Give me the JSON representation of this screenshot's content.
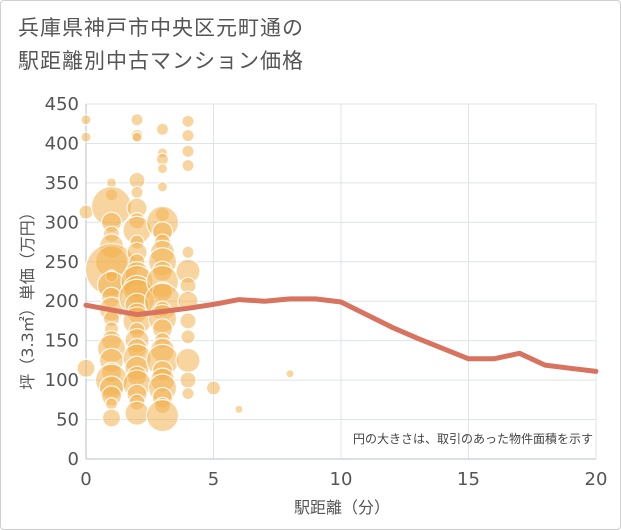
{
  "chart_data": {
    "type": "scatter",
    "title_lines": [
      "兵庫県神戸市中央区元町通の",
      "駅距離別中古マンション価格"
    ],
    "xlabel": "駅距離（分）",
    "ylabel": "坪（3.3㎡）単価（万円）",
    "note": "円の大きさは、取引のあった物件面積を示す",
    "xlim": [
      0,
      20
    ],
    "ylim": [
      0,
      450
    ],
    "x_ticks": [
      0,
      5,
      10,
      15,
      20
    ],
    "y_ticks": [
      0,
      50,
      100,
      150,
      200,
      250,
      300,
      350,
      400,
      450
    ],
    "grid": true,
    "colors": {
      "bubble": "#f2b04e",
      "trend": "#d87360",
      "grid": "#dde4ea",
      "text": "#555555"
    },
    "points": [
      {
        "x": 0,
        "y": 430,
        "r": 5
      },
      {
        "x": 0,
        "y": 408,
        "r": 5
      },
      {
        "x": 0,
        "y": 313,
        "r": 7
      },
      {
        "x": 0,
        "y": 115,
        "r": 9
      },
      {
        "x": 1,
        "y": 350,
        "r": 5
      },
      {
        "x": 1,
        "y": 335,
        "r": 6
      },
      {
        "x": 1,
        "y": 320,
        "r": 20
      },
      {
        "x": 1,
        "y": 300,
        "r": 10
      },
      {
        "x": 1,
        "y": 285,
        "r": 8
      },
      {
        "x": 1,
        "y": 270,
        "r": 12
      },
      {
        "x": 1,
        "y": 250,
        "r": 16
      },
      {
        "x": 1,
        "y": 240,
        "r": 26
      },
      {
        "x": 1,
        "y": 232,
        "r": 6
      },
      {
        "x": 1,
        "y": 220,
        "r": 14
      },
      {
        "x": 1,
        "y": 205,
        "r": 10
      },
      {
        "x": 1,
        "y": 190,
        "r": 12
      },
      {
        "x": 1,
        "y": 178,
        "r": 8
      },
      {
        "x": 1,
        "y": 165,
        "r": 7
      },
      {
        "x": 1,
        "y": 150,
        "r": 10
      },
      {
        "x": 1,
        "y": 140,
        "r": 14
      },
      {
        "x": 1,
        "y": 125,
        "r": 12
      },
      {
        "x": 1,
        "y": 110,
        "r": 10
      },
      {
        "x": 1,
        "y": 100,
        "r": 16
      },
      {
        "x": 1,
        "y": 90,
        "r": 12
      },
      {
        "x": 1,
        "y": 80,
        "r": 10
      },
      {
        "x": 1,
        "y": 70,
        "r": 6
      },
      {
        "x": 1,
        "y": 52,
        "r": 9
      },
      {
        "x": 2,
        "y": 430,
        "r": 6
      },
      {
        "x": 2,
        "y": 410,
        "r": 6
      },
      {
        "x": 2,
        "y": 408,
        "r": 5
      },
      {
        "x": 2,
        "y": 353,
        "r": 8
      },
      {
        "x": 2,
        "y": 338,
        "r": 6
      },
      {
        "x": 2,
        "y": 318,
        "r": 10
      },
      {
        "x": 2,
        "y": 302,
        "r": 8
      },
      {
        "x": 2,
        "y": 290,
        "r": 14
      },
      {
        "x": 2,
        "y": 275,
        "r": 7
      },
      {
        "x": 2,
        "y": 262,
        "r": 10
      },
      {
        "x": 2,
        "y": 250,
        "r": 8
      },
      {
        "x": 2,
        "y": 235,
        "r": 12
      },
      {
        "x": 2,
        "y": 225,
        "r": 16
      },
      {
        "x": 2,
        "y": 215,
        "r": 14
      },
      {
        "x": 2,
        "y": 205,
        "r": 18
      },
      {
        "x": 2,
        "y": 195,
        "r": 12
      },
      {
        "x": 2,
        "y": 185,
        "r": 10
      },
      {
        "x": 2,
        "y": 175,
        "r": 14
      },
      {
        "x": 2,
        "y": 163,
        "r": 8
      },
      {
        "x": 2,
        "y": 150,
        "r": 12
      },
      {
        "x": 2,
        "y": 140,
        "r": 10
      },
      {
        "x": 2,
        "y": 128,
        "r": 14
      },
      {
        "x": 2,
        "y": 115,
        "r": 12
      },
      {
        "x": 2,
        "y": 105,
        "r": 10
      },
      {
        "x": 2,
        "y": 95,
        "r": 14
      },
      {
        "x": 2,
        "y": 82,
        "r": 10
      },
      {
        "x": 2,
        "y": 72,
        "r": 8
      },
      {
        "x": 2,
        "y": 58,
        "r": 12
      },
      {
        "x": 3,
        "y": 418,
        "r": 6
      },
      {
        "x": 3,
        "y": 388,
        "r": 5
      },
      {
        "x": 3,
        "y": 380,
        "r": 6
      },
      {
        "x": 3,
        "y": 368,
        "r": 5
      },
      {
        "x": 3,
        "y": 345,
        "r": 5
      },
      {
        "x": 3,
        "y": 310,
        "r": 7
      },
      {
        "x": 3,
        "y": 300,
        "r": 16
      },
      {
        "x": 3,
        "y": 288,
        "r": 10
      },
      {
        "x": 3,
        "y": 275,
        "r": 8
      },
      {
        "x": 3,
        "y": 262,
        "r": 12
      },
      {
        "x": 3,
        "y": 250,
        "r": 14
      },
      {
        "x": 3,
        "y": 238,
        "r": 10
      },
      {
        "x": 3,
        "y": 225,
        "r": 16
      },
      {
        "x": 3,
        "y": 212,
        "r": 10
      },
      {
        "x": 3,
        "y": 200,
        "r": 18
      },
      {
        "x": 3,
        "y": 190,
        "r": 8
      },
      {
        "x": 3,
        "y": 178,
        "r": 14
      },
      {
        "x": 3,
        "y": 165,
        "r": 10
      },
      {
        "x": 3,
        "y": 150,
        "r": 8
      },
      {
        "x": 3,
        "y": 138,
        "r": 12
      },
      {
        "x": 3,
        "y": 125,
        "r": 16
      },
      {
        "x": 3,
        "y": 112,
        "r": 10
      },
      {
        "x": 3,
        "y": 100,
        "r": 12
      },
      {
        "x": 3,
        "y": 90,
        "r": 14
      },
      {
        "x": 3,
        "y": 78,
        "r": 10
      },
      {
        "x": 3,
        "y": 68,
        "r": 8
      },
      {
        "x": 3,
        "y": 55,
        "r": 16
      },
      {
        "x": 4,
        "y": 428,
        "r": 6
      },
      {
        "x": 4,
        "y": 410,
        "r": 6
      },
      {
        "x": 4,
        "y": 390,
        "r": 6
      },
      {
        "x": 4,
        "y": 372,
        "r": 6
      },
      {
        "x": 4,
        "y": 262,
        "r": 6
      },
      {
        "x": 4,
        "y": 238,
        "r": 12
      },
      {
        "x": 4,
        "y": 220,
        "r": 8
      },
      {
        "x": 4,
        "y": 200,
        "r": 10
      },
      {
        "x": 4,
        "y": 175,
        "r": 8
      },
      {
        "x": 4,
        "y": 155,
        "r": 7
      },
      {
        "x": 4,
        "y": 125,
        "r": 12
      },
      {
        "x": 4,
        "y": 100,
        "r": 8
      },
      {
        "x": 4,
        "y": 83,
        "r": 6
      },
      {
        "x": 5,
        "y": 90,
        "r": 7
      },
      {
        "x": 6,
        "y": 63,
        "r": 4
      },
      {
        "x": 8,
        "y": 108,
        "r": 4
      }
    ],
    "trend": {
      "x": [
        0,
        1,
        2,
        3,
        4,
        5,
        6,
        7,
        8,
        9,
        10,
        11,
        12,
        13,
        14,
        15,
        16,
        17,
        18,
        19,
        20
      ],
      "y": [
        195,
        189,
        183,
        187,
        191,
        196,
        202,
        200,
        203,
        203,
        199,
        183,
        167,
        153,
        140,
        127,
        127,
        134,
        119,
        115,
        111
      ]
    }
  }
}
